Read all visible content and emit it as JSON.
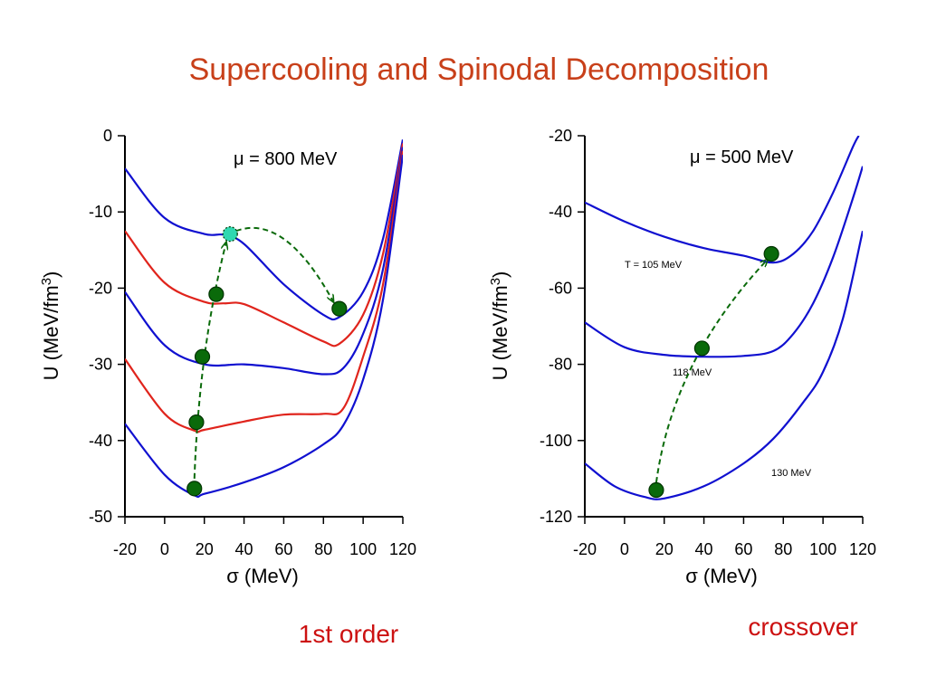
{
  "slide": {
    "title": "Supercooling and Spinodal Decomposition"
  },
  "colors": {
    "title": "#c8401a",
    "blue_curve": "#1010d0",
    "red_curve": "#e0241c",
    "marker": "#0a6a0a",
    "marker_highlight": "#30d8b0",
    "arrow": "#0a6a0a",
    "caption": "#cc1111"
  },
  "chart_data": [
    {
      "type": "line",
      "panel": "left",
      "annotation": {
        "mu": "μ",
        "text": " = 800 MeV"
      },
      "caption": "1st order",
      "xlabel": {
        "sym": "σ",
        "text": " (MeV)"
      },
      "ylabel": {
        "prefix": "U (MeV/fm",
        "sup": "3",
        "suffix": ")"
      },
      "xlim": [
        -20,
        120
      ],
      "ylim": [
        -50,
        0
      ],
      "xticks": [
        "-20",
        "0",
        "20",
        "40",
        "60",
        "80",
        "100",
        "120"
      ],
      "yticks": [
        "0",
        "-10",
        "-20",
        "-30",
        "-40",
        "-50"
      ],
      "series": [
        {
          "color": "blue",
          "x": [
            -20,
            0,
            20,
            30,
            40,
            60,
            80,
            88,
            100,
            110,
            120
          ],
          "y": [
            -4.3,
            -10.8,
            -12.9,
            -13.0,
            -14.2,
            -19.5,
            -23.5,
            -23.8,
            -20.5,
            -13.5,
            -0.5
          ]
        },
        {
          "color": "red",
          "x": [
            -20,
            0,
            20,
            30,
            40,
            60,
            80,
            88,
            100,
            110,
            120
          ],
          "y": [
            -12.5,
            -19.3,
            -21.8,
            -22.0,
            -22.1,
            -24.5,
            -27.0,
            -27.3,
            -23.5,
            -15.5,
            -1.0
          ]
        },
        {
          "color": "blue",
          "x": [
            -20,
            0,
            20,
            40,
            60,
            80,
            90,
            100,
            110,
            120
          ],
          "y": [
            -20.5,
            -27.5,
            -30.0,
            -30.0,
            -30.5,
            -31.3,
            -30.5,
            -26.0,
            -17.5,
            -1.5
          ]
        },
        {
          "color": "red",
          "x": [
            -20,
            0,
            15,
            20,
            40,
            60,
            80,
            90,
            100,
            110,
            120
          ],
          "y": [
            -29.3,
            -36.5,
            -38.7,
            -38.6,
            -37.5,
            -36.6,
            -36.5,
            -35.8,
            -29.0,
            -19.5,
            -2.0
          ]
        },
        {
          "color": "blue",
          "x": [
            -20,
            0,
            15,
            20,
            40,
            60,
            80,
            90,
            100,
            110,
            120
          ],
          "y": [
            -37.8,
            -44.5,
            -47.2,
            -47.0,
            -45.5,
            -43.5,
            -40.5,
            -38.0,
            -32.0,
            -21.5,
            -2.5
          ]
        }
      ],
      "markers": [
        {
          "x": 15,
          "y": -46.3,
          "highlight": false
        },
        {
          "x": 16,
          "y": -37.6,
          "highlight": false
        },
        {
          "x": 19,
          "y": -29.0,
          "highlight": false
        },
        {
          "x": 26,
          "y": -20.8,
          "highlight": false
        },
        {
          "x": 33,
          "y": -12.9,
          "highlight": true
        },
        {
          "x": 88,
          "y": -22.7,
          "highlight": false
        }
      ],
      "arrows": [
        {
          "from": [
            15,
            -45.0
          ],
          "to": [
            31,
            -14.0
          ],
          "curve": "up"
        },
        {
          "from": [
            36,
            -12.5
          ],
          "to": [
            85,
            -21.8
          ],
          "curve": "over"
        }
      ]
    },
    {
      "type": "line",
      "panel": "right",
      "annotation": {
        "mu": "μ",
        "text": " = 500 MeV"
      },
      "caption": "crossover",
      "xlabel": {
        "sym": "σ",
        "text": " (MeV)"
      },
      "ylabel": {
        "prefix": "U (MeV/fm",
        "sup": "3",
        "suffix": ")"
      },
      "xlim": [
        -20,
        120
      ],
      "ylim": [
        -120,
        -20
      ],
      "xticks": [
        "-20",
        "0",
        "20",
        "40",
        "60",
        "80",
        "100",
        "120"
      ],
      "yticks": [
        "-20",
        "-40",
        "-60",
        "-80",
        "-100",
        "-120"
      ],
      "series": [
        {
          "color": "blue",
          "label": "T = 105 MeV",
          "x": [
            -20,
            0,
            20,
            40,
            60,
            75,
            85,
            95,
            105,
            115,
            118
          ],
          "y": [
            -37.5,
            -42.5,
            -46.5,
            -49.5,
            -51.5,
            -53.3,
            -51.0,
            -45.0,
            -35.0,
            -23.0,
            -20.0
          ]
        },
        {
          "color": "blue",
          "label": "118 MeV",
          "x": [
            -20,
            0,
            20,
            40,
            60,
            75,
            85,
            95,
            105,
            115,
            120
          ],
          "y": [
            -69.0,
            -75.5,
            -77.5,
            -78.0,
            -77.8,
            -76.5,
            -72.0,
            -64.0,
            -52.0,
            -36.5,
            -28.0
          ]
        },
        {
          "color": "blue",
          "label": "130 MeV",
          "x": [
            -20,
            -5,
            10,
            20,
            40,
            60,
            75,
            90,
            100,
            110,
            120
          ],
          "y": [
            -106.0,
            -112.0,
            -114.8,
            -115.2,
            -112.0,
            -106.0,
            -99.5,
            -90.0,
            -82.0,
            -68.0,
            -45.0
          ]
        }
      ],
      "markers": [
        {
          "x": 16,
          "y": -113.0,
          "highlight": false
        },
        {
          "x": 39,
          "y": -75.8,
          "highlight": false
        },
        {
          "x": 74,
          "y": -51.0,
          "highlight": false
        }
      ],
      "arrows": [
        {
          "from": [
            16,
            -111.0
          ],
          "to": [
            72,
            -52.5
          ],
          "curve": "up"
        }
      ]
    }
  ]
}
